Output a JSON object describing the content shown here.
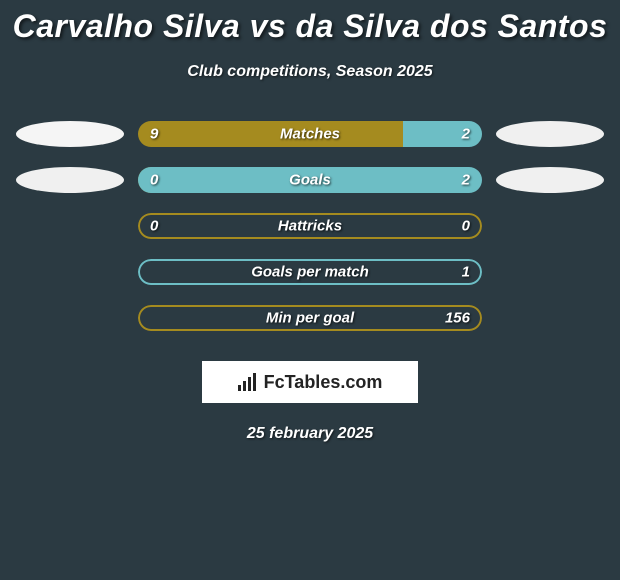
{
  "title": "Carvalho Silva vs da Silva dos Santos",
  "subtitle": "Club competitions, Season 2025",
  "date": "25 february 2025",
  "logo_text": "FcTables.com",
  "colors": {
    "background": "#2b3a42",
    "left_bar": "#a58b1f",
    "right_bar": "#6dbec5",
    "ellipse_light": "#f5f5f5",
    "ellipse_right_light": "#f0f0f0",
    "border": "#6dbec5"
  },
  "rows": [
    {
      "label": "Matches",
      "left_value": "9",
      "right_value": "2",
      "left_pct": 77,
      "right_pct": 23,
      "left_color": "#a58b1f",
      "right_color": "#6dbec5",
      "border_color": null,
      "show_left_ellipse": true,
      "show_right_ellipse": true,
      "left_ellipse_color": "#f5f5f5",
      "right_ellipse_color": "#f0f0f0"
    },
    {
      "label": "Goals",
      "left_value": "0",
      "right_value": "2",
      "left_pct": 7,
      "right_pct": 100,
      "left_color": "#a58b1f",
      "right_color": "#6dbec5",
      "border_color": null,
      "show_left_ellipse": true,
      "show_right_ellipse": true,
      "left_ellipse_color": "#f0f0f0",
      "right_ellipse_color": "#f0f0f0"
    },
    {
      "label": "Hattricks",
      "left_value": "0",
      "right_value": "0",
      "left_pct": 0,
      "right_pct": 0,
      "left_color": "#a58b1f",
      "right_color": "#6dbec5",
      "border_color": "#a58b1f",
      "show_left_ellipse": false,
      "show_right_ellipse": false
    },
    {
      "label": "Goals per match",
      "left_value": "",
      "right_value": "1",
      "left_pct": 0,
      "right_pct": 0,
      "left_color": "#a58b1f",
      "right_color": "#6dbec5",
      "border_color": "#6dbec5",
      "show_left_ellipse": false,
      "show_right_ellipse": false
    },
    {
      "label": "Min per goal",
      "left_value": "",
      "right_value": "156",
      "left_pct": 0,
      "right_pct": 0,
      "left_color": "#a58b1f",
      "right_color": "#6dbec5",
      "border_color": "#a58b1f",
      "show_left_ellipse": false,
      "show_right_ellipse": false
    }
  ]
}
